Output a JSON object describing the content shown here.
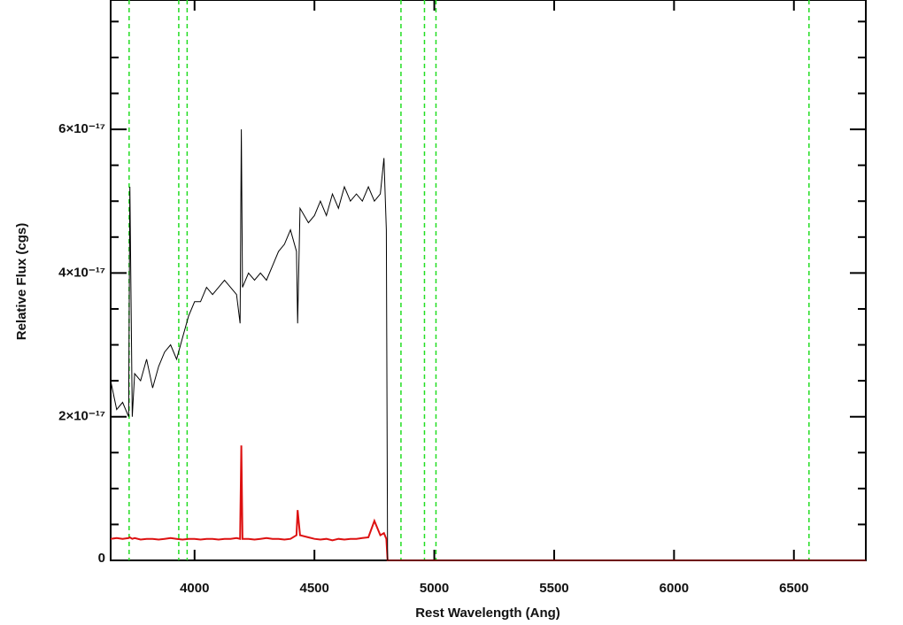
{
  "chart_data": {
    "type": "line",
    "xlabel": "Rest Wavelength (Ang)",
    "ylabel": "Relative Flux (cgs)",
    "x": [
      3650,
      3675,
      3700,
      3725,
      3730,
      3740,
      3750,
      3775,
      3800,
      3825,
      3850,
      3875,
      3900,
      3925,
      3950,
      3975,
      4000,
      4025,
      4050,
      4075,
      4100,
      4125,
      4150,
      4175,
      4190,
      4195,
      4200,
      4225,
      4250,
      4275,
      4300,
      4325,
      4350,
      4375,
      4400,
      4425,
      4430,
      4440,
      4475,
      4500,
      4525,
      4550,
      4575,
      4600,
      4625,
      4650,
      4675,
      4700,
      4725,
      4750,
      4775,
      4790,
      4800,
      4805,
      6800
    ],
    "series": [
      {
        "color": "#000000",
        "values": [
          2.5e-17,
          2.1e-17,
          2.2e-17,
          2e-17,
          5.2e-17,
          2e-17,
          2.6e-17,
          2.5e-17,
          2.8e-17,
          2.4e-17,
          2.7e-17,
          2.9e-17,
          3e-17,
          2.8e-17,
          3.1e-17,
          3.4e-17,
          3.6e-17,
          3.6e-17,
          3.8e-17,
          3.7e-17,
          3.8e-17,
          3.9e-17,
          3.8e-17,
          3.7e-17,
          3.3e-17,
          6e-17,
          3.8e-17,
          4e-17,
          3.9e-17,
          4e-17,
          3.9e-17,
          4.1e-17,
          4.3e-17,
          4.4e-17,
          4.6e-17,
          4.3e-17,
          3.3e-17,
          4.9e-17,
          4.7e-17,
          4.8e-17,
          5e-17,
          4.8e-17,
          5.1e-17,
          4.9e-17,
          5.2e-17,
          5e-17,
          5.1e-17,
          5e-17,
          5.2e-17,
          5e-17,
          5.1e-17,
          5.6e-17,
          4.6e-17,
          0,
          0
        ]
      },
      {
        "color": "#dd1111",
        "values": [
          3e-18,
          3.1e-18,
          3e-18,
          3.1e-18,
          3.2e-18,
          3e-18,
          3.1e-18,
          2.9e-18,
          3e-18,
          3e-18,
          2.9e-18,
          3e-18,
          3.1e-18,
          3e-18,
          2.9e-18,
          3e-18,
          3e-18,
          2.9e-18,
          3e-18,
          3e-18,
          2.9e-18,
          3e-18,
          3e-18,
          3.1e-18,
          3e-18,
          1.6e-17,
          3e-18,
          3e-18,
          2.9e-18,
          3e-18,
          3.1e-18,
          3e-18,
          3e-18,
          2.9e-18,
          3e-18,
          3.5e-18,
          7e-18,
          3.5e-18,
          3.2e-18,
          3e-18,
          2.9e-18,
          3e-18,
          2.8e-18,
          3e-18,
          2.9e-18,
          3e-18,
          3e-18,
          3.1e-18,
          3.2e-18,
          5.5e-18,
          3.5e-18,
          3.8e-18,
          3e-18,
          0,
          0
        ]
      }
    ],
    "vlines": [
      3727,
      3934,
      3969,
      4861,
      4959,
      5007,
      6563
    ],
    "vline_color": "#22dd22",
    "xlim": [
      3650,
      6800
    ],
    "xticks": [
      4000,
      4500,
      5000,
      5500,
      6000,
      6500
    ],
    "ylim": [
      0,
      7.8e-17
    ],
    "yticks": [
      0,
      {
        "value": 2e-17,
        "label": "2×10⁻¹⁷"
      },
      {
        "value": 4e-17,
        "label": "4×10⁻¹⁷"
      },
      {
        "value": 6e-17,
        "label": "6×10⁻¹⁷"
      }
    ],
    "yminorticks": [
      5e-18,
      1e-17,
      1.5e-17,
      2.5e-17,
      3e-17,
      3.5e-17,
      4.5e-17,
      5e-17,
      5.5e-17,
      6.5e-17,
      7e-17,
      7.5e-17
    ]
  }
}
